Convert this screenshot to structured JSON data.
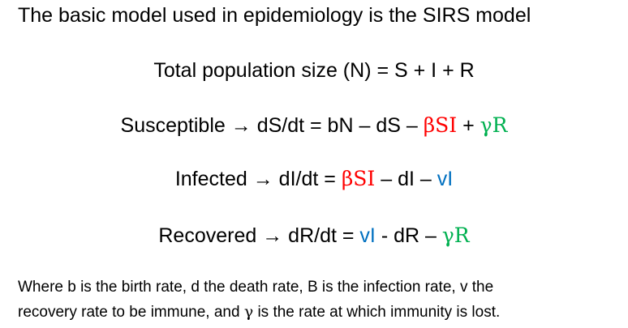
{
  "title": "The basic model used in epidemiology is the SIRS model",
  "equations": {
    "total": {
      "text": "Total population size (N) = S + I + R"
    },
    "susceptible": {
      "label": "Susceptible",
      "arrow": "→",
      "base": " dS/dt = bN – dS – ",
      "beta_term": "βSI",
      "plus": " + ",
      "gamma_term": "γR"
    },
    "infected": {
      "label": "Infected",
      "arrow": "→",
      "base": " dI/dt =  ",
      "beta_term": "βSI",
      "mid": " – dI – ",
      "nu_term": "vI"
    },
    "recovered": {
      "label": "Recovered",
      "arrow": "→",
      "base": " dR/dt = ",
      "nu_term": "vI",
      "mid": " - dR – ",
      "gamma_term": "γR"
    }
  },
  "note": {
    "line1": "Where b is the birth rate, d the death rate, B is the infection rate, v the",
    "line2_start": "recovery rate to be immune, and ",
    "gamma": "γ",
    "line2_end": " is the rate at which immunity is lost."
  },
  "colors": {
    "beta": "#ff0000",
    "gamma": "#00b050",
    "nu": "#0070c0"
  }
}
